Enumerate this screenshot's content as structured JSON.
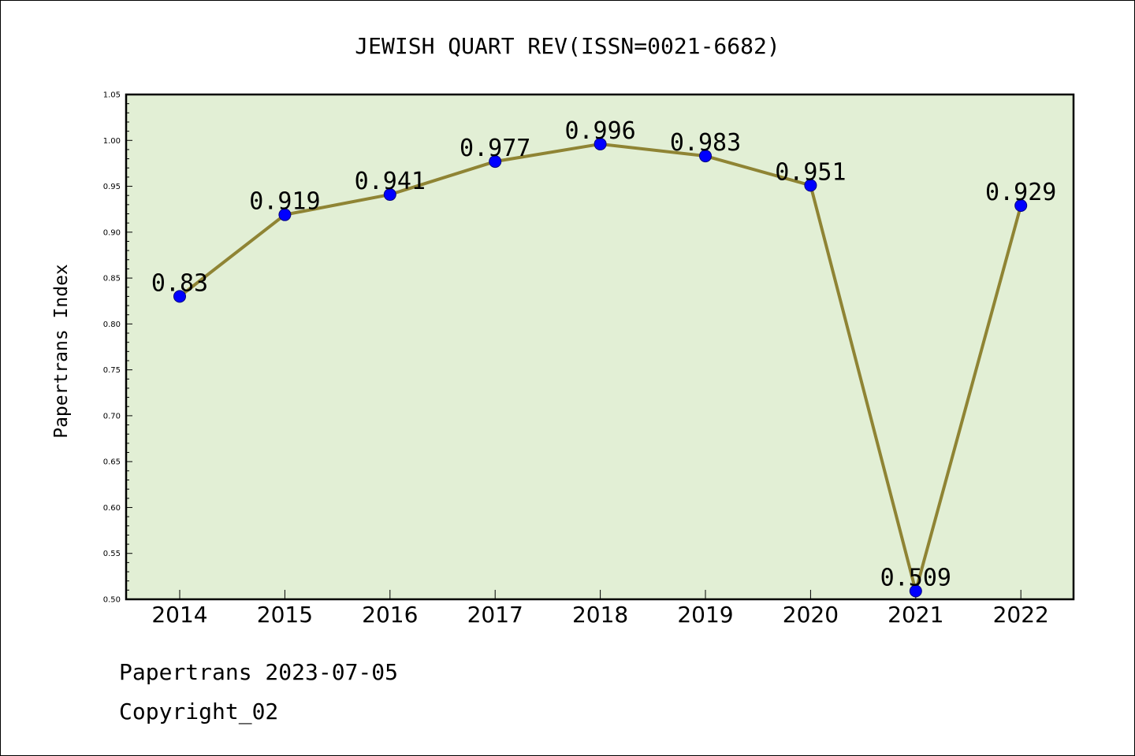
{
  "chart_data": {
    "type": "line",
    "title": "JEWISH QUART REV(ISSN=0021-6682)",
    "xlabel": "",
    "ylabel": "Papertrans Index",
    "categories": [
      "2014",
      "2015",
      "2016",
      "2017",
      "2018",
      "2019",
      "2020",
      "2021",
      "2022"
    ],
    "series": [
      {
        "values": [
          0.83,
          0.919,
          0.941,
          0.977,
          0.996,
          0.983,
          0.951,
          0.509,
          0.929
        ],
        "labels": [
          "0.83",
          "0.919",
          "0.941",
          "0.977",
          "0.996",
          "0.983",
          "0.951",
          "0.509",
          "0.929"
        ]
      }
    ],
    "ylim": [
      0.5,
      1.05
    ],
    "yticks": [
      0.5,
      0.55,
      0.6,
      0.65,
      0.7,
      0.75,
      0.8,
      0.85,
      0.9,
      0.95,
      1.0,
      1.05
    ],
    "ytick_labels": [
      "0.50",
      "0.55",
      "0.60",
      "0.65",
      "0.70",
      "0.75",
      "0.80",
      "0.85",
      "0.90",
      "0.95",
      "1.00",
      "1.05"
    ],
    "grid": false,
    "colors": {
      "plot_background": "#e2efd5",
      "line": "#8f8434",
      "marker": "#0000ff"
    }
  },
  "footer": {
    "date_line": "Papertrans 2023-07-05",
    "copyright_line": "Copyright_02"
  }
}
